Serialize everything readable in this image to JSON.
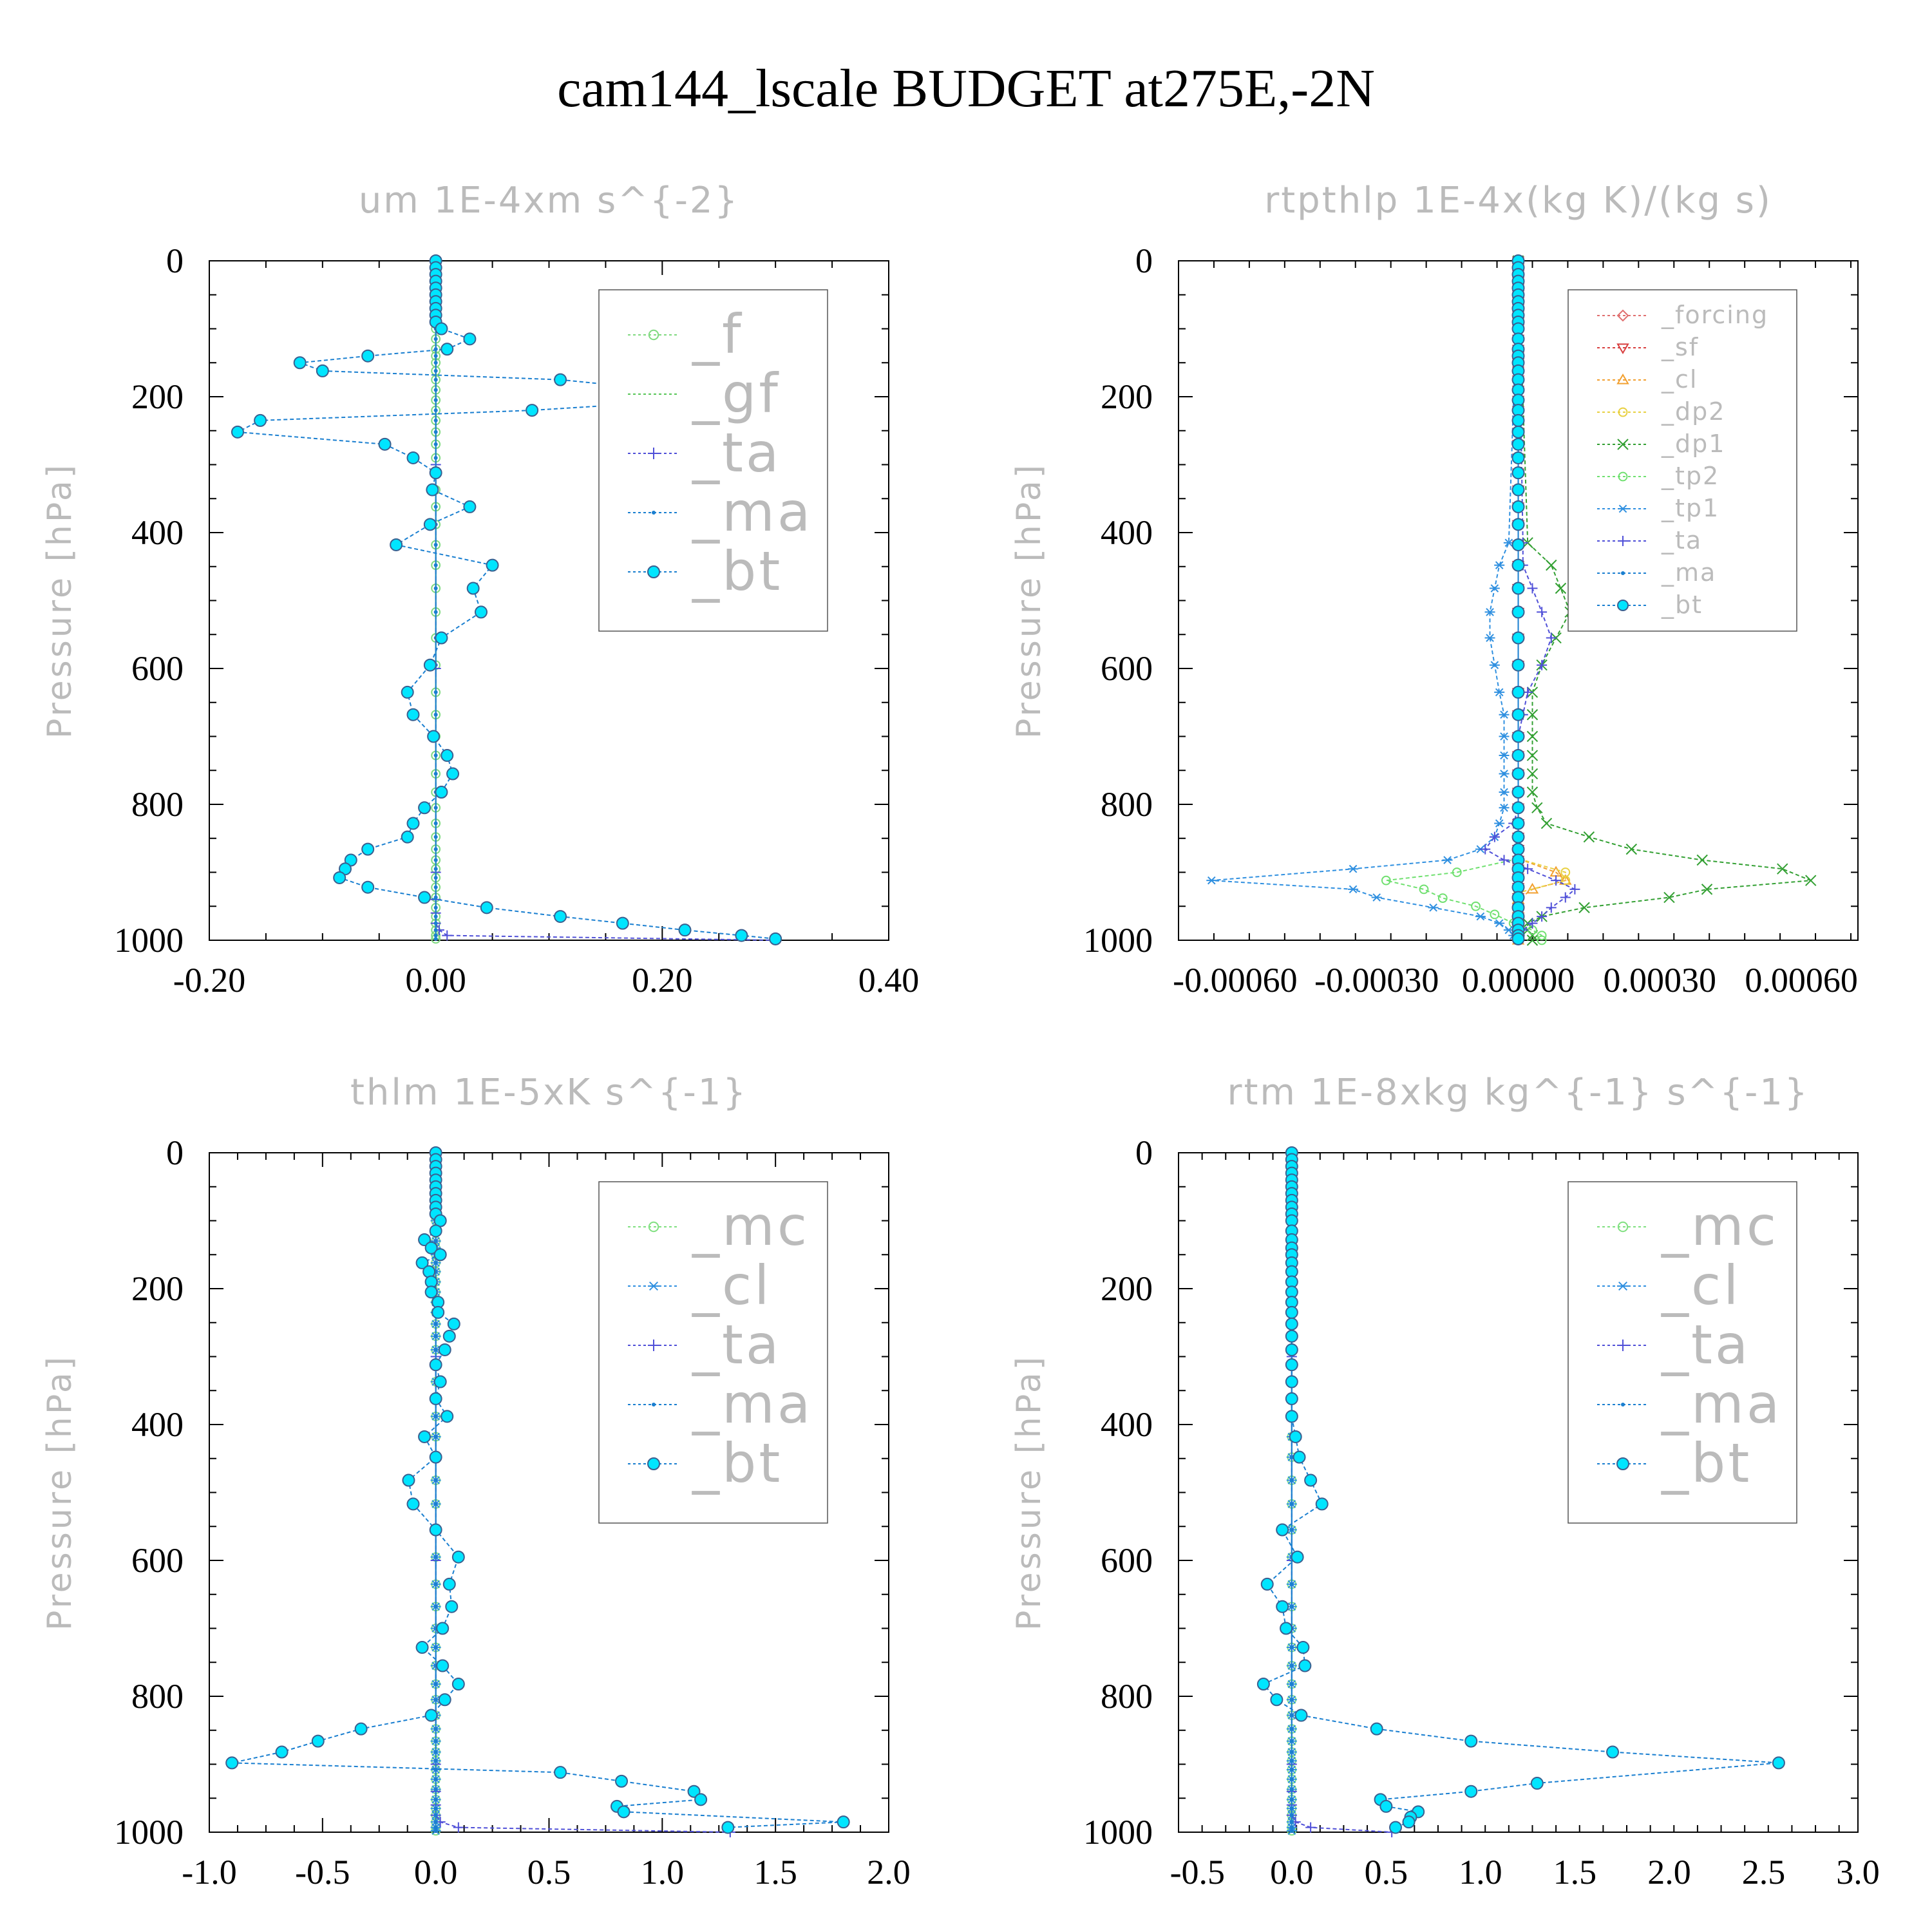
{
  "title": "cam144_lscale  BUDGET at275E,-2N",
  "colors": {
    "f": "#7fd97f",
    "gf": "#57c657",
    "ta": "#5050d8",
    "ma": "#1a7fd0",
    "bt": "#00e5ff",
    "forcing": "#e07070",
    "sf": "#d84040",
    "cl_orange": "#f2a030",
    "dp2": "#e8d040",
    "dp1": "#33a033",
    "tp2": "#70e070",
    "tp1": "#3090e0",
    "mc": "#80e080",
    "cl": "#3090e0",
    "axis_label": "#bbbbbb",
    "bt_edge": "#3a6090"
  },
  "chart_data": [
    {
      "type": "line",
      "title": "um  1E-4xm s^{-2}",
      "ylabel": "Pressure [hPa]",
      "xlim": [
        -0.2,
        0.4
      ],
      "ylim": [
        1000,
        0
      ],
      "xticks": [
        "-0.20",
        "0.00",
        "0.20",
        "0.40"
      ],
      "yticks": [
        "0",
        "200",
        "400",
        "600",
        "800",
        "1000"
      ],
      "legend_position": "top-right",
      "legend_size": "large",
      "series": [
        {
          "name": "_f",
          "color_key": "f",
          "marker": "circle-open",
          "values": 0
        },
        {
          "name": "_gf",
          "color_key": "gf",
          "marker": "none",
          "values": 0
        },
        {
          "name": "_ta",
          "color_key": "ta",
          "marker": "plus",
          "p": [
            0,
            300,
            600,
            900,
            940,
            960,
            975,
            985,
            993,
            1000
          ],
          "x": [
            0,
            0,
            0,
            0,
            0,
            0,
            0,
            0.003,
            0.01,
            0.3
          ]
        },
        {
          "name": "_ma",
          "color_key": "ma",
          "marker": "dot",
          "values": 0
        },
        {
          "name": "_bt",
          "color_key": "bt",
          "marker": "circle-filled",
          "p": [
            0,
            10,
            20,
            30,
            40,
            50,
            60,
            70,
            80,
            90,
            100,
            115,
            130,
            140,
            150,
            162,
            175,
            190,
            205,
            220,
            235,
            252,
            270,
            290,
            312,
            337,
            362,
            388,
            418,
            448,
            482,
            517,
            555,
            595,
            635,
            668,
            700,
            728,
            755,
            782,
            805,
            828,
            848,
            866,
            882,
            895,
            908,
            922,
            937,
            952,
            965,
            975,
            985,
            993,
            998
          ],
          "x": [
            0,
            0,
            0,
            0,
            0,
            0,
            0,
            0,
            0,
            0,
            0.005,
            0.03,
            0.01,
            -0.06,
            -0.12,
            -0.1,
            0.11,
            0.2,
            0.23,
            0.085,
            -0.155,
            -0.175,
            -0.045,
            -0.02,
            0,
            -0.003,
            0.03,
            -0.005,
            -0.035,
            0.05,
            0.033,
            0.04,
            0.005,
            -0.005,
            -0.025,
            -0.02,
            -0.002,
            0.01,
            0.015,
            0.005,
            -0.01,
            -0.02,
            -0.025,
            -0.06,
            -0.075,
            -0.08,
            -0.085,
            -0.06,
            -0.01,
            0.045,
            0.11,
            0.165,
            0.22,
            0.27,
            0.3
          ]
        }
      ]
    },
    {
      "type": "line",
      "title": "rtpthlp  1E-4x(kg K)/(kg s)",
      "ylabel": "Pressure [hPa]",
      "xlim": [
        -0.00072,
        0.00072
      ],
      "ylim": [
        1000,
        0
      ],
      "xticks": [
        "-0.00060",
        "-0.00030",
        "0.00000",
        "0.00030",
        "0.00060"
      ],
      "yticks": [
        "0",
        "200",
        "400",
        "600",
        "800",
        "1000"
      ],
      "legend_position": "top-right",
      "legend_size": "small",
      "series": [
        {
          "name": "_forcing",
          "color_key": "forcing",
          "marker": "diamond-open",
          "values": 0
        },
        {
          "name": "_sf",
          "color_key": "sf",
          "marker": "triangle-down-open",
          "values": 0
        },
        {
          "name": "_cl",
          "color_key": "cl_orange",
          "marker": "triangle-up-open",
          "p": [
            0,
            880,
            900,
            912,
            925,
            940,
            955,
            968,
            980,
            990,
            1000
          ],
          "x": [
            0,
            0,
            8e-05,
            0.0001,
            3e-05,
            0,
            0,
            0,
            0,
            0,
            0
          ]
        },
        {
          "name": "_dp2",
          "color_key": "dp2",
          "marker": "circle-open",
          "p": [
            0,
            880,
            900,
            912,
            930,
            950,
            965,
            980,
            990,
            1000
          ],
          "x": [
            0,
            0,
            0.0001,
            0.0001,
            0,
            0,
            0,
            0,
            0,
            0
          ]
        },
        {
          "name": "_dp1",
          "color_key": "dp1",
          "marker": "x",
          "p": [
            0,
            415,
            448,
            482,
            517,
            555,
            595,
            635,
            668,
            700,
            728,
            755,
            782,
            805,
            828,
            848,
            866,
            882,
            895,
            912,
            925,
            937,
            952,
            965,
            975,
            985,
            993,
            1000
          ],
          "x": [
            0,
            2e-05,
            7e-05,
            9e-05,
            0.00011,
            8e-05,
            5e-05,
            3e-05,
            3e-05,
            3e-05,
            3e-05,
            3e-05,
            3e-05,
            4e-05,
            6e-05,
            0.00015,
            0.00024,
            0.00039,
            0.00056,
            0.00062,
            0.0004,
            0.00032,
            0.00014,
            5e-05,
            2e-05,
            2e-05,
            3e-05,
            3e-05
          ]
        },
        {
          "name": "_tp2",
          "color_key": "tp2",
          "marker": "circle-open",
          "p": [
            0,
            880,
            900,
            912,
            925,
            938,
            950,
            962,
            975,
            985,
            993,
            1000
          ],
          "x": [
            0,
            0,
            -0.00013,
            -0.00028,
            -0.0002,
            -0.00016,
            -9e-05,
            -5e-05,
            -1e-05,
            3e-05,
            5e-05,
            5e-05
          ]
        },
        {
          "name": "_tp1",
          "color_key": "tp1",
          "marker": "asterisk",
          "p": [
            0,
            415,
            448,
            482,
            517,
            555,
            595,
            635,
            668,
            700,
            728,
            755,
            782,
            805,
            828,
            848,
            866,
            882,
            895,
            912,
            925,
            937,
            952,
            965,
            975,
            985,
            993,
            1000
          ],
          "x": [
            0,
            -2e-05,
            -4e-05,
            -5e-05,
            -6e-05,
            -6e-05,
            -5e-05,
            -4e-05,
            -3e-05,
            -3e-05,
            -3e-05,
            -3e-05,
            -3e-05,
            -3e-05,
            -4e-05,
            -5e-05,
            -8e-05,
            -0.00015,
            -0.00035,
            -0.00065,
            -0.00035,
            -0.0003,
            -0.00018,
            -8e-05,
            -4e-05,
            -2e-05,
            -1e-05,
            0
          ]
        },
        {
          "name": "_ta",
          "color_key": "ta",
          "marker": "plus",
          "p": [
            0,
            415,
            448,
            482,
            517,
            555,
            595,
            635,
            668,
            700,
            728,
            755,
            782,
            805,
            828,
            848,
            866,
            882,
            895,
            912,
            925,
            937,
            952,
            965,
            975,
            985,
            993,
            1000
          ],
          "x": [
            0,
            1e-05,
            1e-05,
            3e-05,
            5e-05,
            7e-05,
            5e-05,
            2e-05,
            1e-05,
            0,
            0,
            0,
            0,
            0,
            -1e-05,
            -5e-05,
            -7e-05,
            -3e-05,
            2e-05,
            8e-05,
            0.00012,
            0.0001,
            7e-05,
            5e-05,
            3e-05,
            1e-05,
            0,
            0
          ]
        },
        {
          "name": "_ma",
          "color_key": "ma",
          "marker": "dot",
          "values": 0
        },
        {
          "name": "_bt",
          "color_key": "bt",
          "marker": "circle-filled",
          "values": 0
        }
      ]
    },
    {
      "type": "line",
      "title": "thlm  1E-5xK s^{-1}",
      "ylabel": "Pressure [hPa]",
      "xlim": [
        -1.0,
        2.0
      ],
      "ylim": [
        1000,
        0
      ],
      "xticks": [
        "-1.0",
        "-0.5",
        "0.0",
        "0.5",
        "1.0",
        "1.5",
        "2.0"
      ],
      "yticks": [
        "0",
        "200",
        "400",
        "600",
        "800",
        "1000"
      ],
      "legend_position": "top-right",
      "legend_size": "large",
      "series": [
        {
          "name": "_mc",
          "color_key": "mc",
          "marker": "circle-open",
          "values": 0
        },
        {
          "name": "_cl",
          "color_key": "cl",
          "marker": "asterisk",
          "values": 0
        },
        {
          "name": "_ta",
          "color_key": "ta",
          "marker": "plus",
          "p": [
            0,
            300,
            600,
            900,
            940,
            960,
            975,
            985,
            993,
            1000
          ],
          "x": [
            0,
            0,
            0,
            0,
            0,
            0,
            0,
            0.02,
            0.1,
            1.3
          ]
        },
        {
          "name": "_ma",
          "color_key": "ma",
          "marker": "dot",
          "values": 0
        },
        {
          "name": "_bt",
          "color_key": "bt",
          "marker": "circle-filled",
          "p": [
            0,
            10,
            20,
            30,
            40,
            50,
            60,
            70,
            80,
            90,
            100,
            115,
            128,
            140,
            150,
            162,
            175,
            190,
            205,
            220,
            235,
            252,
            270,
            290,
            312,
            337,
            362,
            388,
            418,
            448,
            482,
            517,
            555,
            595,
            635,
            668,
            700,
            728,
            755,
            782,
            805,
            828,
            848,
            866,
            882,
            898,
            912,
            925,
            940,
            952,
            962,
            970,
            985,
            993
          ],
          "x": [
            0,
            0,
            0,
            0,
            0,
            0,
            0,
            0,
            0,
            0,
            0.02,
            0,
            -0.05,
            -0.02,
            0.02,
            -0.06,
            -0.03,
            -0.02,
            -0.02,
            0.01,
            0.01,
            0.08,
            0.06,
            0.04,
            0,
            0.02,
            0,
            0.05,
            -0.05,
            0,
            -0.12,
            -0.1,
            0,
            0.1,
            0.06,
            0.07,
            0.03,
            -0.06,
            0.03,
            0.1,
            0.04,
            -0.02,
            -0.33,
            -0.52,
            -0.68,
            -0.9,
            0.55,
            0.82,
            1.14,
            1.17,
            0.8,
            0.83,
            1.8,
            1.29
          ]
        }
      ]
    },
    {
      "type": "line",
      "title": "rtm  1E-8xkg kg^{-1} s^{-1}",
      "ylabel": "Pressure [hPa]",
      "xlim": [
        -0.6,
        3.0
      ],
      "ylim": [
        1000,
        0
      ],
      "xticks": [
        "-0.5",
        "0.0",
        "0.5",
        "1.0",
        "1.5",
        "2.0",
        "2.5",
        "3.0"
      ],
      "yticks": [
        "0",
        "200",
        "400",
        "600",
        "800",
        "1000"
      ],
      "legend_position": "top-right",
      "legend_size": "large",
      "series": [
        {
          "name": "_mc",
          "color_key": "mc",
          "marker": "circle-open",
          "values": 0
        },
        {
          "name": "_cl",
          "color_key": "cl",
          "marker": "asterisk",
          "values": 0
        },
        {
          "name": "_ta",
          "color_key": "ta",
          "marker": "plus",
          "p": [
            0,
            300,
            600,
            900,
            940,
            960,
            975,
            985,
            993,
            1000
          ],
          "x": [
            0,
            0,
            0,
            0,
            0,
            0,
            0,
            0.02,
            0.1,
            0.53
          ]
        },
        {
          "name": "_ma",
          "color_key": "ma",
          "marker": "dot",
          "values": 0
        },
        {
          "name": "_bt",
          "color_key": "bt",
          "marker": "circle-filled",
          "p": [
            0,
            10,
            20,
            30,
            40,
            50,
            60,
            70,
            80,
            90,
            100,
            115,
            128,
            140,
            150,
            162,
            175,
            190,
            205,
            220,
            235,
            252,
            270,
            290,
            312,
            337,
            362,
            388,
            418,
            448,
            482,
            517,
            555,
            595,
            635,
            668,
            700,
            728,
            755,
            782,
            805,
            828,
            848,
            866,
            882,
            898,
            928,
            940,
            952,
            962,
            970,
            978,
            985,
            993
          ],
          "x": [
            0,
            0,
            0,
            0,
            0,
            0,
            0,
            0,
            0,
            0,
            0,
            0,
            0,
            0,
            0,
            0,
            0,
            0,
            0,
            0,
            0,
            0,
            0,
            0,
            0,
            0,
            0,
            0,
            0.02,
            0.04,
            0.1,
            0.16,
            -0.05,
            0.03,
            -0.13,
            -0.05,
            -0.03,
            0.06,
            0.07,
            -0.15,
            -0.08,
            0.05,
            0.45,
            0.95,
            1.7,
            2.58,
            1.3,
            0.95,
            0.47,
            0.5,
            0.67,
            0.63,
            0.62,
            0.55
          ]
        }
      ]
    }
  ]
}
